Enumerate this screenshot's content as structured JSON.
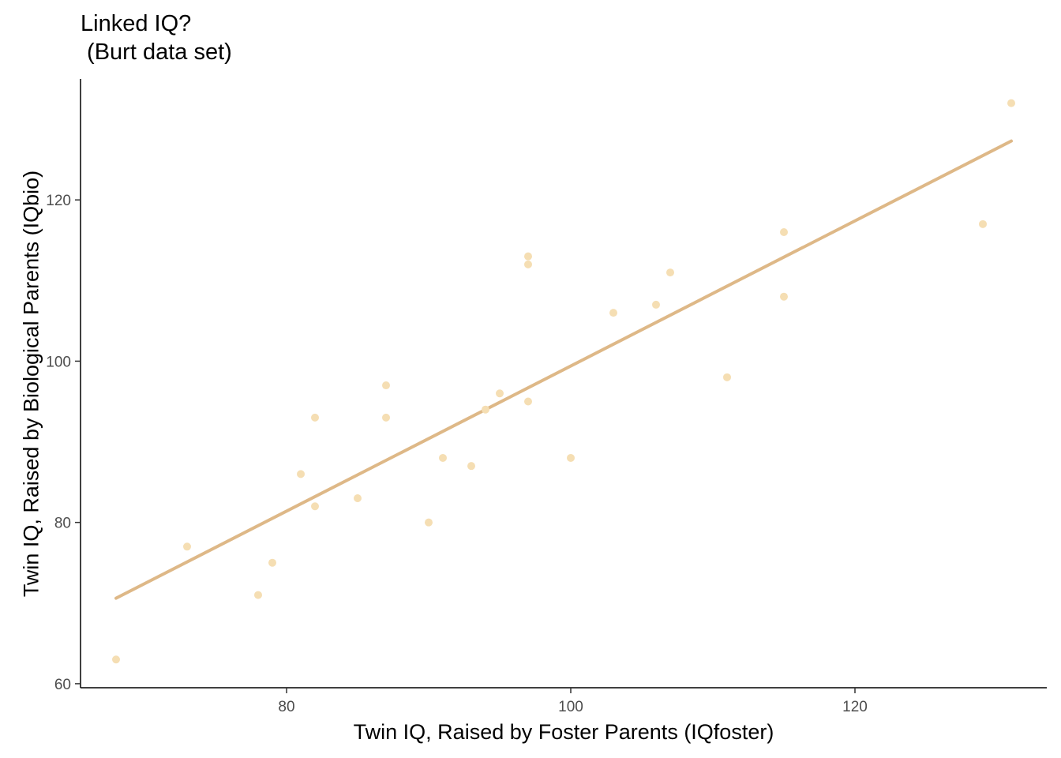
{
  "chart_data": {
    "type": "scatter",
    "title_line1": "Linked IQ?",
    "title_line2": " (Burt data set)",
    "xlabel": "Twin IQ, Raised by Foster Parents (IQfoster)",
    "ylabel": "Twin IQ, Raised by Biological Parents (IQbio)",
    "xlim": [
      65.5,
      133.5
    ],
    "ylim": [
      59.5,
      135
    ],
    "xticks": [
      80,
      100,
      120
    ],
    "yticks": [
      60,
      80,
      100,
      120
    ],
    "grid": false,
    "point_color": "#f5deb3",
    "line_color": "#deb887",
    "points": [
      {
        "x": 68,
        "y": 63
      },
      {
        "x": 73,
        "y": 77
      },
      {
        "x": 78,
        "y": 71
      },
      {
        "x": 79,
        "y": 75
      },
      {
        "x": 81,
        "y": 86
      },
      {
        "x": 82,
        "y": 82
      },
      {
        "x": 82,
        "y": 93
      },
      {
        "x": 85,
        "y": 83
      },
      {
        "x": 87,
        "y": 93
      },
      {
        "x": 87,
        "y": 97
      },
      {
        "x": 90,
        "y": 80
      },
      {
        "x": 91,
        "y": 88
      },
      {
        "x": 93,
        "y": 87
      },
      {
        "x": 94,
        "y": 94
      },
      {
        "x": 95,
        "y": 96
      },
      {
        "x": 97,
        "y": 95
      },
      {
        "x": 97,
        "y": 112
      },
      {
        "x": 97,
        "y": 113
      },
      {
        "x": 100,
        "y": 88
      },
      {
        "x": 103,
        "y": 106
      },
      {
        "x": 106,
        "y": 107
      },
      {
        "x": 107,
        "y": 111
      },
      {
        "x": 111,
        "y": 98
      },
      {
        "x": 115,
        "y": 108
      },
      {
        "x": 115,
        "y": 116
      },
      {
        "x": 129,
        "y": 117
      },
      {
        "x": 131,
        "y": 132
      }
    ],
    "fit_line": {
      "x1": 68,
      "y1": 70.6,
      "x2": 131,
      "y2": 127.3
    }
  }
}
